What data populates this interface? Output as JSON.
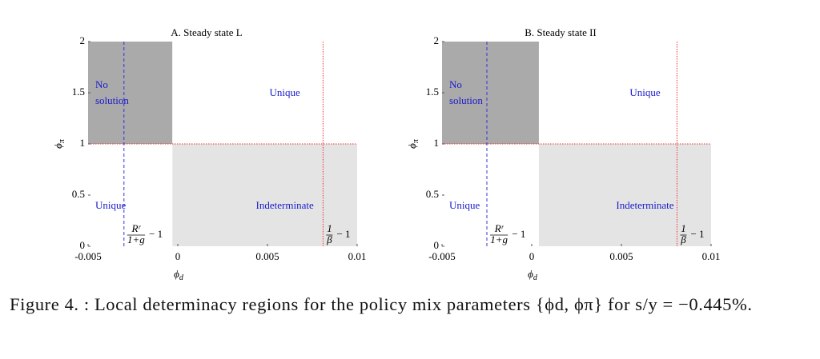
{
  "chart_data": [
    {
      "type": "region",
      "title": "A. Steady state L",
      "xlabel": {
        "symbol": "ϕ",
        "sub": "d"
      },
      "ylabel": {
        "symbol": "ϕ",
        "sub": "π"
      },
      "xlim": [
        -0.005,
        0.01
      ],
      "ylim": [
        0,
        2
      ],
      "xticks": [
        -0.005,
        0,
        0.005,
        0.01
      ],
      "yticks": [
        0,
        0.5,
        1,
        1.5,
        2
      ],
      "regions": [
        {
          "label": [
            "No",
            "solution"
          ],
          "color": "#aaaaaa",
          "x": [
            -0.005,
            -0.0003
          ],
          "y": [
            1,
            2
          ]
        },
        {
          "label": [
            "Unique"
          ],
          "color": "#ffffff",
          "x": [
            -0.0003,
            0.01
          ],
          "y": [
            1,
            2
          ]
        },
        {
          "label": [
            "Unique"
          ],
          "color": "#ffffff",
          "x": [
            -0.005,
            -0.0003
          ],
          "y": [
            0,
            1
          ]
        },
        {
          "label": [
            "Indeterminate"
          ],
          "color": "#e4e4e4",
          "x": [
            -0.0003,
            0.01
          ],
          "y": [
            0,
            1
          ]
        }
      ],
      "vlines": [
        {
          "x": -0.003,
          "color": "#3333dd",
          "label": {
            "num": "Rʳ",
            "den": "1+g",
            "tail": "− 1"
          }
        },
        {
          "x": 0.0081,
          "color": "#ee3333",
          "label": {
            "num": "1",
            "den": "β",
            "tail": "− 1"
          }
        }
      ],
      "hlines": [
        {
          "y": 1,
          "color": "#ee3333"
        }
      ]
    },
    {
      "type": "region",
      "title": "B. Steady state II",
      "xlabel": {
        "symbol": "ϕ",
        "sub": "d"
      },
      "ylabel": {
        "symbol": "ϕ",
        "sub": "π"
      },
      "xlim": [
        -0.005,
        0.01
      ],
      "ylim": [
        0,
        2
      ],
      "xticks": [
        -0.005,
        0,
        0.005,
        0.01
      ],
      "yticks": [
        0,
        0.5,
        1,
        1.5,
        2
      ],
      "regions": [
        {
          "label": [
            "No",
            "solution"
          ],
          "color": "#aaaaaa",
          "x": [
            -0.005,
            0.0004
          ],
          "y": [
            1,
            2
          ]
        },
        {
          "label": [
            "Unique"
          ],
          "color": "#ffffff",
          "x": [
            0.0004,
            0.01
          ],
          "y": [
            1,
            2
          ]
        },
        {
          "label": [
            "Unique"
          ],
          "color": "#ffffff",
          "x": [
            -0.005,
            0.0004
          ],
          "y": [
            0,
            1
          ]
        },
        {
          "label": [
            "Indeterminate"
          ],
          "color": "#e4e4e4",
          "x": [
            0.0004,
            0.01
          ],
          "y": [
            0,
            1
          ]
        }
      ],
      "vlines": [
        {
          "x": -0.0025,
          "color": "#3333dd",
          "label": {
            "num": "Rʳ",
            "den": "1+g",
            "tail": "− 1"
          }
        },
        {
          "x": 0.0081,
          "color": "#ee3333",
          "label": {
            "num": "1",
            "den": "β",
            "tail": "− 1"
          }
        }
      ],
      "hlines": [
        {
          "y": 1,
          "color": "#ee3333"
        }
      ]
    }
  ],
  "caption": "Figure 4. : Local determinacy regions for the policy mix parameters {ϕd, ϕπ} for s/y = −0.445%."
}
